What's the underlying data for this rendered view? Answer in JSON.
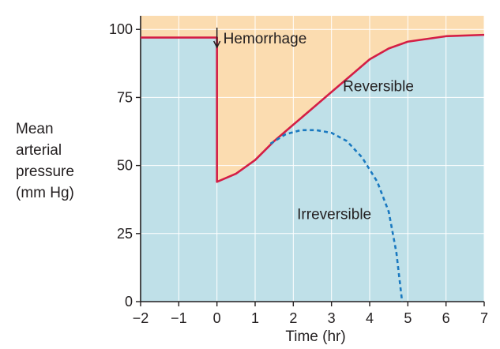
{
  "chart_data": {
    "type": "line",
    "xlabel": "Time (hr)",
    "ylabel_lines": [
      "Mean",
      "arterial",
      "pressure",
      "(mm Hg)"
    ],
    "x_ticks": [
      -2,
      -1,
      0,
      1,
      2,
      3,
      4,
      5,
      6,
      7
    ],
    "x_tick_labels": [
      "−2",
      "−1",
      "0",
      "1",
      "2",
      "3",
      "4",
      "5",
      "6",
      "7"
    ],
    "y_ticks": [
      0,
      25,
      50,
      75,
      100
    ],
    "xlim": [
      -2,
      7
    ],
    "ylim": [
      0,
      105
    ],
    "grid": true,
    "colors": {
      "below_curve": "#bfe0e8",
      "pressure_deficit": "#fbdcb0",
      "reversible": "#d41e45",
      "irreversible": "#1a79c0",
      "grid": "#ffffff",
      "axis": "#231f20"
    },
    "annotations": [
      {
        "id": "hemorrhage",
        "text": "Hemorrhage",
        "x": 0,
        "y": 100,
        "arrow": "down"
      },
      {
        "id": "reversible",
        "text": "Reversible",
        "x": 3.3,
        "y": 79
      },
      {
        "id": "irreversible",
        "text": "Irreversible",
        "x": 2.1,
        "y": 32
      }
    ],
    "series": [
      {
        "name": "Reversible",
        "style": "solid",
        "x": [
          -2,
          0,
          0,
          0.5,
          1,
          1.5,
          2,
          2.5,
          3,
          3.5,
          4,
          4.5,
          5,
          6,
          7
        ],
        "y": [
          97,
          97,
          44,
          47,
          52,
          59,
          65,
          71,
          77,
          83,
          89,
          93,
          95.5,
          97.5,
          98
        ]
      },
      {
        "name": "Irreversible",
        "style": "dashed",
        "x": [
          1.4,
          1.8,
          2.2,
          2.6,
          3.0,
          3.4,
          3.8,
          4.2,
          4.5,
          4.7,
          4.85
        ],
        "y": [
          58,
          61.5,
          63,
          63,
          62,
          59,
          53,
          44,
          33,
          18,
          0
        ]
      }
    ]
  }
}
